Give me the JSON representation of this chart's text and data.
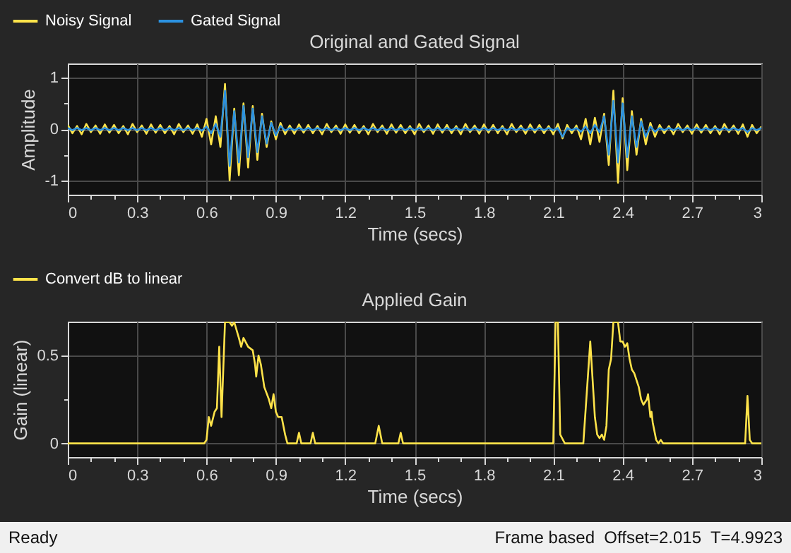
{
  "chart_data": [
    {
      "type": "line",
      "title": "Original and Gated Signal",
      "xlabel": "Time (secs)",
      "ylabel": "Amplitude",
      "legend": "top left",
      "grid": true,
      "xlim": [
        0,
        3
      ],
      "ylim": [
        -1.28,
        1.28
      ],
      "xticks": [
        0,
        {
          "value": 0.1,
          "label": null
        },
        {
          "value": 0.2,
          "label": null
        },
        0.3,
        {
          "value": 0.4,
          "label": null
        },
        {
          "value": 0.5,
          "label": null
        },
        0.6,
        {
          "value": 0.7,
          "label": null
        },
        {
          "value": 0.8,
          "label": null
        },
        0.9,
        {
          "value": 1.0,
          "label": null
        },
        {
          "value": 1.1,
          "label": null
        },
        1.2,
        {
          "value": 1.3,
          "label": null
        },
        {
          "value": 1.4,
          "label": null
        },
        1.5,
        {
          "value": 1.6,
          "label": null
        },
        {
          "value": 1.7,
          "label": null
        },
        1.8,
        {
          "value": 1.9,
          "label": null
        },
        {
          "value": 2.0,
          "label": null
        },
        2.1,
        {
          "value": 2.2,
          "label": null
        },
        {
          "value": 2.3,
          "label": null
        },
        2.4,
        {
          "value": 2.5,
          "label": null
        },
        {
          "value": 2.6,
          "label": null
        },
        2.7,
        {
          "value": 2.8,
          "label": null
        },
        {
          "value": 2.9,
          "label": null
        },
        3
      ],
      "yticks": [
        -1,
        {
          "value": -0.5,
          "label": null
        },
        0,
        {
          "value": 0.5,
          "label": null
        },
        1
      ],
      "x": [
        0,
        0.02,
        0.04,
        0.06,
        0.08,
        0.1,
        0.12,
        0.14,
        0.16,
        0.18,
        0.2,
        0.22,
        0.24,
        0.26,
        0.28,
        0.3,
        0.32,
        0.34,
        0.36,
        0.38,
        0.4,
        0.42,
        0.44,
        0.46,
        0.48,
        0.5,
        0.52,
        0.54,
        0.56,
        0.58,
        0.6,
        0.62,
        0.64,
        0.66,
        0.68,
        0.7,
        0.72,
        0.74,
        0.76,
        0.78,
        0.8,
        0.82,
        0.84,
        0.86,
        0.88,
        0.9,
        0.92,
        0.94,
        0.96,
        0.98,
        1,
        1.02,
        1.04,
        1.06,
        1.08,
        1.1,
        1.12,
        1.14,
        1.16,
        1.18,
        1.2,
        1.22,
        1.24,
        1.26,
        1.28,
        1.3,
        1.32,
        1.34,
        1.36,
        1.38,
        1.4,
        1.42,
        1.44,
        1.46,
        1.48,
        1.5,
        1.52,
        1.54,
        1.56,
        1.58,
        1.6,
        1.62,
        1.64,
        1.66,
        1.68,
        1.7,
        1.72,
        1.74,
        1.76,
        1.78,
        1.8,
        1.82,
        1.84,
        1.86,
        1.88,
        1.9,
        1.92,
        1.94,
        1.96,
        1.98,
        2,
        2.02,
        2.04,
        2.06,
        2.08,
        2.1,
        2.12,
        2.14,
        2.16,
        2.18,
        2.2,
        2.22,
        2.24,
        2.26,
        2.28,
        2.3,
        2.32,
        2.34,
        2.36,
        2.38,
        2.4,
        2.42,
        2.44,
        2.46,
        2.48,
        2.5,
        2.52,
        2.54,
        2.56,
        2.58,
        2.6,
        2.62,
        2.64,
        2.66,
        2.68,
        2.7,
        2.72,
        2.74,
        2.76,
        2.78,
        2.8,
        2.82,
        2.84,
        2.86,
        2.88,
        2.9,
        2.92,
        2.94,
        2.96,
        2.98,
        3
      ],
      "series": [
        {
          "name": "Noisy Signal",
          "color": "#ffe34a",
          "values": [
            0.08,
            -0.08,
            0.06,
            -0.1,
            0.1,
            -0.06,
            0.07,
            -0.09,
            0.09,
            -0.07,
            0.08,
            -0.08,
            0.06,
            -0.1,
            0.1,
            -0.06,
            0.07,
            -0.09,
            0.09,
            -0.07,
            0.08,
            -0.08,
            0.06,
            -0.1,
            0.1,
            -0.06,
            0.07,
            -0.09,
            0.09,
            -0.15,
            0.2,
            -0.3,
            0.25,
            -0.35,
            0.88,
            -1.0,
            0.4,
            -0.9,
            0.5,
            -0.75,
            0.45,
            -0.6,
            0.3,
            -0.35,
            0.15,
            -0.2,
            0.12,
            -0.1,
            0.07,
            -0.09,
            0.09,
            -0.07,
            0.08,
            -0.08,
            0.06,
            -0.1,
            0.1,
            -0.06,
            0.07,
            -0.09,
            0.09,
            -0.07,
            0.08,
            -0.08,
            0.06,
            -0.1,
            0.1,
            -0.06,
            0.07,
            -0.09,
            0.09,
            -0.07,
            0.08,
            -0.08,
            0.06,
            -0.1,
            0.1,
            -0.06,
            0.07,
            -0.09,
            0.09,
            -0.07,
            0.08,
            -0.08,
            0.06,
            -0.1,
            0.1,
            -0.06,
            0.07,
            -0.09,
            0.09,
            -0.07,
            0.08,
            -0.08,
            0.06,
            -0.1,
            0.1,
            -0.06,
            0.07,
            -0.09,
            0.09,
            -0.07,
            0.08,
            -0.08,
            0.06,
            -0.1,
            0.1,
            -0.18,
            0.08,
            -0.08,
            0.07,
            -0.2,
            0.2,
            -0.3,
            0.22,
            -0.25,
            0.3,
            -0.7,
            0.75,
            -1.05,
            0.6,
            -0.8,
            0.35,
            -0.5,
            0.2,
            -0.3,
            0.12,
            -0.15,
            0.08,
            -0.08,
            0.06,
            -0.1,
            0.1,
            -0.06,
            0.07,
            -0.09,
            0.09,
            -0.07,
            0.08,
            -0.08,
            0.06,
            -0.1,
            0.1,
            -0.06,
            0.07,
            -0.09,
            0.09,
            -0.15,
            0.08,
            -0.08,
            0.05
          ]
        },
        {
          "name": "Gated Signal",
          "color": "#2b91e0",
          "values": [
            0.02,
            -0.02,
            0.02,
            -0.02,
            0.02,
            -0.02,
            0.02,
            -0.02,
            0.02,
            -0.02,
            0.02,
            -0.02,
            0.02,
            -0.02,
            0.02,
            -0.02,
            0.02,
            -0.02,
            0.02,
            -0.02,
            0.02,
            -0.02,
            0.02,
            -0.02,
            0.02,
            -0.02,
            0.02,
            -0.02,
            0.02,
            -0.03,
            0.05,
            -0.08,
            0.1,
            -0.15,
            0.75,
            -0.72,
            0.35,
            -0.65,
            0.45,
            -0.55,
            0.4,
            -0.45,
            0.25,
            -0.28,
            0.12,
            -0.12,
            0.06,
            -0.03,
            0.02,
            -0.02,
            0.02,
            -0.02,
            0.02,
            -0.02,
            0.02,
            -0.02,
            0.02,
            -0.02,
            0.02,
            -0.02,
            0.02,
            -0.02,
            0.02,
            -0.02,
            0.02,
            -0.02,
            0.02,
            -0.02,
            0.02,
            -0.02,
            0.02,
            -0.02,
            0.02,
            -0.02,
            0.02,
            -0.02,
            0.02,
            -0.02,
            0.02,
            -0.02,
            0.02,
            -0.02,
            0.02,
            -0.02,
            0.02,
            -0.02,
            0.02,
            -0.02,
            0.02,
            -0.02,
            0.02,
            -0.02,
            0.02,
            -0.02,
            0.02,
            -0.02,
            0.02,
            -0.02,
            0.02,
            -0.02,
            0.02,
            -0.02,
            0.02,
            -0.02,
            0.02,
            -0.02,
            0.02,
            -0.15,
            0.02,
            -0.02,
            0.02,
            -0.05,
            0.05,
            -0.08,
            0.08,
            -0.06,
            0.25,
            -0.5,
            0.55,
            -0.65,
            0.5,
            -0.55,
            0.25,
            -0.35,
            0.15,
            -0.15,
            0.05,
            -0.05,
            0.02,
            -0.02,
            0.02,
            -0.02,
            0.02,
            -0.02,
            0.02,
            -0.02,
            0.02,
            -0.02,
            0.02,
            -0.02,
            0.02,
            -0.02,
            0.02,
            -0.02,
            0.02,
            -0.02,
            0.02,
            -0.06,
            0.02,
            -0.02,
            0.02
          ]
        }
      ]
    },
    {
      "type": "line",
      "title": "Applied Gain",
      "xlabel": "Time (secs)",
      "ylabel": "Gain (linear)",
      "legend": "top left",
      "grid": true,
      "xlim": [
        0,
        3
      ],
      "ylim": [
        -0.078,
        0.693
      ],
      "xticks": [
        0,
        {
          "value": 0.1,
          "label": null
        },
        {
          "value": 0.2,
          "label": null
        },
        0.3,
        {
          "value": 0.4,
          "label": null
        },
        {
          "value": 0.5,
          "label": null
        },
        0.6,
        {
          "value": 0.7,
          "label": null
        },
        {
          "value": 0.8,
          "label": null
        },
        0.9,
        {
          "value": 1.0,
          "label": null
        },
        {
          "value": 1.1,
          "label": null
        },
        1.2,
        {
          "value": 1.3,
          "label": null
        },
        {
          "value": 1.4,
          "label": null
        },
        1.5,
        {
          "value": 1.6,
          "label": null
        },
        {
          "value": 1.7,
          "label": null
        },
        1.8,
        {
          "value": 1.9,
          "label": null
        },
        {
          "value": 2.0,
          "label": null
        },
        2.1,
        {
          "value": 2.2,
          "label": null
        },
        {
          "value": 2.3,
          "label": null
        },
        2.4,
        {
          "value": 2.5,
          "label": null
        },
        {
          "value": 2.6,
          "label": null
        },
        2.7,
        {
          "value": 2.8,
          "label": null
        },
        {
          "value": 2.9,
          "label": null
        },
        3
      ],
      "yticks": [
        0,
        {
          "value": 0.25,
          "label": null
        },
        0.5
      ],
      "annotations": [
        "Ready",
        "Frame based  Offset=2.015  T=4.9923"
      ],
      "x": [
        0,
        0.59,
        0.6,
        0.61,
        0.62,
        0.635,
        0.645,
        0.655,
        0.665,
        0.68,
        0.7,
        0.71,
        0.72,
        0.74,
        0.75,
        0.76,
        0.78,
        0.8,
        0.81,
        0.815,
        0.825,
        0.835,
        0.85,
        0.87,
        0.88,
        0.89,
        0.9,
        0.91,
        0.925,
        0.94,
        0.95,
        0.99,
        1.0,
        1.01,
        1.05,
        1.06,
        1.07,
        1.33,
        1.345,
        1.36,
        1.43,
        1.44,
        1.45,
        2.1,
        2.11,
        2.12,
        2.13,
        2.15,
        2.23,
        2.26,
        2.28,
        2.29,
        2.3,
        2.31,
        2.32,
        2.33,
        2.34,
        2.35,
        2.36,
        2.38,
        2.39,
        2.4,
        2.41,
        2.42,
        2.43,
        2.44,
        2.45,
        2.47,
        2.48,
        2.49,
        2.505,
        2.51,
        2.52,
        2.525,
        2.53,
        2.545,
        2.555,
        2.565,
        2.575,
        2.93,
        2.94,
        2.95,
        2.96,
        3
      ],
      "series": [
        {
          "name": "Convert dB to linear",
          "color": "#ffe34a",
          "values": [
            0,
            0,
            0.02,
            0.15,
            0.1,
            0.18,
            0.2,
            0.55,
            0.15,
            0.69,
            0.69,
            0.67,
            0.69,
            0.6,
            0.55,
            0.6,
            0.55,
            0.53,
            0.45,
            0.38,
            0.5,
            0.45,
            0.32,
            0.25,
            0.2,
            0.28,
            0.18,
            0.15,
            0.15,
            0.05,
            0,
            0,
            0.06,
            0,
            0,
            0.06,
            0,
            0,
            0.1,
            0,
            0,
            0.06,
            0,
            0,
            0.69,
            0.69,
            0.05,
            0,
            0,
            0.58,
            0.15,
            0.05,
            0.03,
            0.05,
            0.02,
            0.1,
            0.42,
            0.48,
            0.69,
            0.69,
            0.58,
            0.58,
            0.55,
            0.57,
            0.48,
            0.42,
            0.4,
            0.32,
            0.25,
            0.22,
            0.25,
            0.28,
            0.15,
            0.18,
            0.12,
            0.02,
            0,
            0.02,
            0,
            0,
            0.27,
            0.02,
            0,
            0
          ]
        }
      ]
    }
  ]
}
